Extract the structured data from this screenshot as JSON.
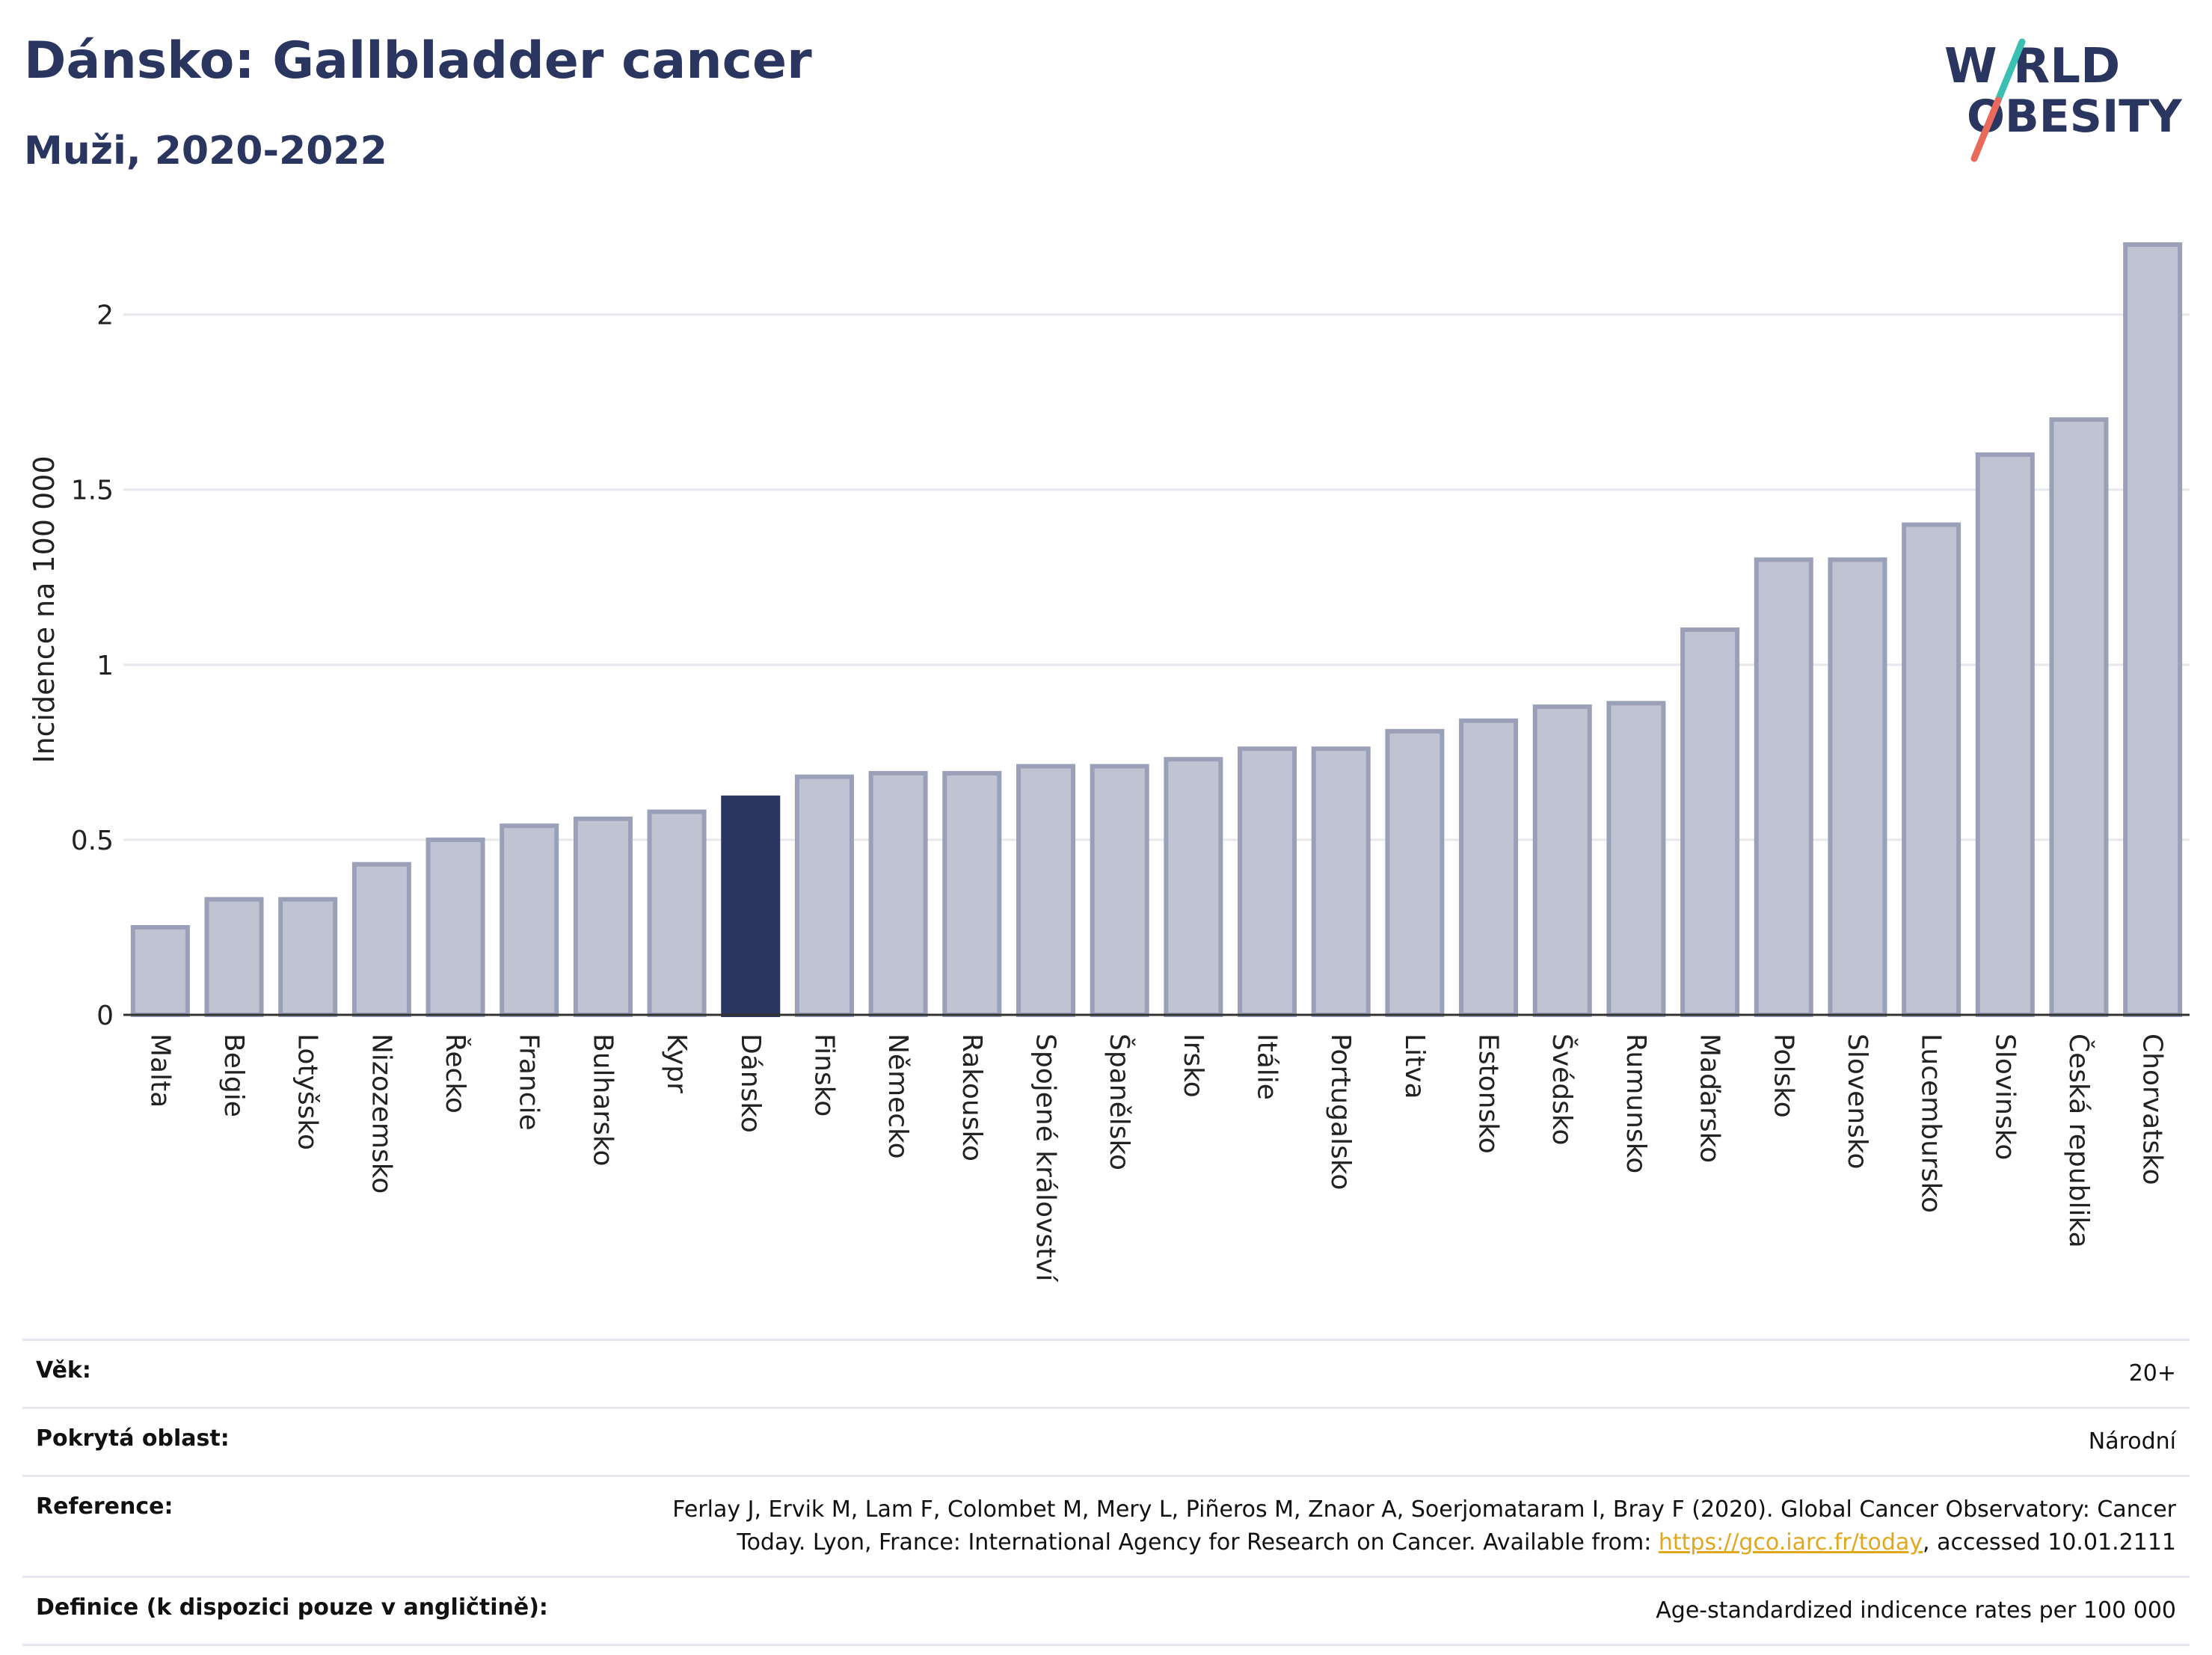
{
  "header": {
    "title": "Dánsko: Gallbladder cancer",
    "subtitle": "Muži, 2020-2022"
  },
  "logo": {
    "line1": "W",
    "line1b": "RLD",
    "line2": "OBESITY",
    "colors": {
      "text": "#2a3560",
      "slash_top": "#3bbfb2",
      "slash_bottom": "#e86a5c"
    }
  },
  "chart_data": {
    "type": "bar",
    "title": "Dánsko: Gallbladder cancer",
    "subtitle": "Muži, 2020-2022",
    "ylabel": "Incidence na 100 000",
    "xlabel": "",
    "ylim": [
      0,
      2.2
    ],
    "yticks": [
      0,
      0.5,
      1,
      1.5,
      2
    ],
    "ytick_labels": [
      "0",
      "0.5",
      "1",
      "1.5",
      "2"
    ],
    "grid": true,
    "categories": [
      "Malta",
      "Belgie",
      "Lotyšsko",
      "Nizozemsko",
      "Řecko",
      "Francie",
      "Bulharsko",
      "Kypr",
      "Dánsko",
      "Finsko",
      "Německo",
      "Rakousko",
      "Spojené království",
      "Španělsko",
      "Irsko",
      "Itálie",
      "Portugalsko",
      "Litva",
      "Estonsko",
      "Švédsko",
      "Rumunsko",
      "Maďarsko",
      "Polsko",
      "Slovensko",
      "Lucembursko",
      "Slovinsko",
      "Česká republika",
      "Chorvatsko"
    ],
    "values": [
      0.25,
      0.33,
      0.33,
      0.43,
      0.5,
      0.54,
      0.56,
      0.58,
      0.62,
      0.68,
      0.69,
      0.69,
      0.71,
      0.71,
      0.73,
      0.76,
      0.76,
      0.81,
      0.84,
      0.88,
      0.89,
      1.1,
      1.3,
      1.3,
      1.4,
      1.6,
      1.7,
      2.2
    ],
    "highlight": "Dánsko",
    "colors": {
      "bar": "#c0c4d2",
      "bar_edge": "#9aa0b8",
      "highlight": "#2a3560",
      "grid": "#e6e8ee",
      "axis": "#333333"
    }
  },
  "meta": {
    "age_label": "Věk:",
    "age_value": "20+",
    "coverage_label": "Pokrytá oblast:",
    "coverage_value": "Národní",
    "reference_label": "Reference:",
    "reference_text_1": "Ferlay J, Ervik M, Lam F, Colombet M, Mery L, Piñeros M, Znaor A, Soerjomataram I, Bray F (2020). Global Cancer Observatory: Cancer",
    "reference_text_2": "Today. Lyon, France: International Agency for Research on Cancer. Available from: ",
    "reference_link": "https://gco.iarc.fr/today",
    "reference_text_3": ", accessed 10.01.2111",
    "definition_label": "Definice (k dispozici pouze v angličtině):",
    "definition_value": "Age-standardized indicence rates per 100 000"
  }
}
